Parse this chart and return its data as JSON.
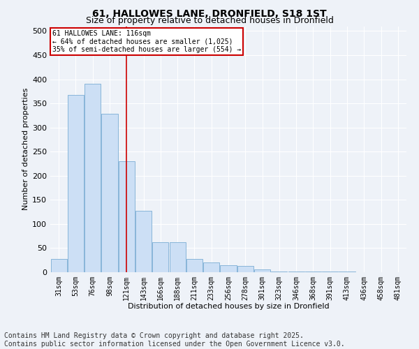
{
  "title": "61, HALLOWES LANE, DRONFIELD, S18 1ST",
  "subtitle": "Size of property relative to detached houses in Dronfield",
  "xlabel": "Distribution of detached houses by size in Dronfield",
  "ylabel": "Number of detached properties",
  "categories": [
    "31sqm",
    "53sqm",
    "76sqm",
    "98sqm",
    "121sqm",
    "143sqm",
    "166sqm",
    "188sqm",
    "211sqm",
    "233sqm",
    "256sqm",
    "278sqm",
    "301sqm",
    "323sqm",
    "346sqm",
    "368sqm",
    "391sqm",
    "413sqm",
    "436sqm",
    "458sqm",
    "481sqm"
  ],
  "values": [
    28,
    368,
    390,
    328,
    230,
    128,
    62,
    62,
    28,
    20,
    15,
    13,
    6,
    2,
    2,
    1,
    1,
    1,
    0,
    0,
    0
  ],
  "bar_color": "#ccdff5",
  "bar_edge_color": "#7aadd4",
  "vline_x": 4,
  "vline_color": "#cc0000",
  "annotation_text": "61 HALLOWES LANE: 116sqm\n← 64% of detached houses are smaller (1,025)\n35% of semi-detached houses are larger (554) →",
  "annotation_box_color": "#ffffff",
  "annotation_box_edge": "#cc0000",
  "footnote": "Contains HM Land Registry data © Crown copyright and database right 2025.\nContains public sector information licensed under the Open Government Licence v3.0.",
  "ylim": [
    0,
    510
  ],
  "yticks": [
    0,
    50,
    100,
    150,
    200,
    250,
    300,
    350,
    400,
    450,
    500
  ],
  "background_color": "#eef2f8",
  "grid_color": "#ffffff",
  "title_fontsize": 10,
  "subtitle_fontsize": 9,
  "axis_label_fontsize": 8,
  "tick_fontsize": 7,
  "footnote_fontsize": 7
}
